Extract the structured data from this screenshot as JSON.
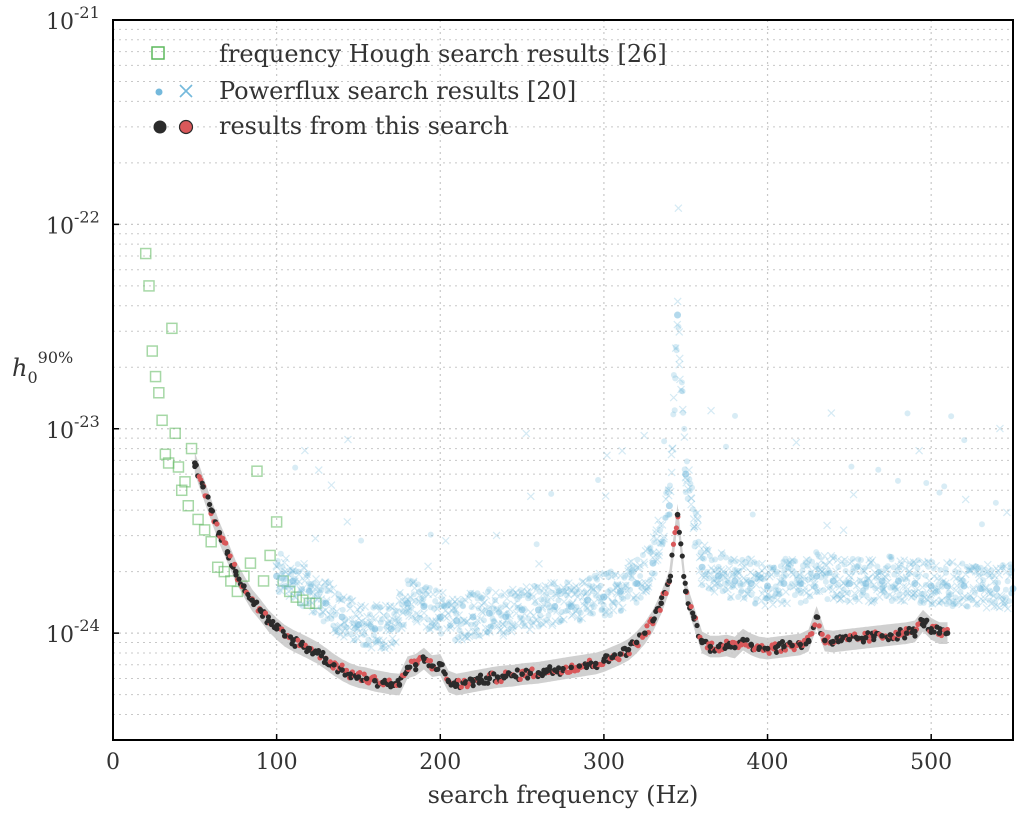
{
  "chart_data": {
    "type": "scatter",
    "xlabel": "search frequency (Hz)",
    "ylabel": "h0^90%",
    "ylabel_parts": {
      "base": "h",
      "sub": "0",
      "sup": "90%"
    },
    "xlim": [
      0,
      550
    ],
    "ylim": [
      3e-25,
      1e-21
    ],
    "y_scale": "log",
    "grid": true,
    "legend_position": "top-left",
    "x_tick_labels": [
      "0",
      "100",
      "200",
      "300",
      "400",
      "500"
    ],
    "y_tick_labels": [
      {
        "base": "10",
        "exp": "-21"
      },
      {
        "base": "10",
        "exp": "-22"
      },
      {
        "base": "10",
        "exp": "-23"
      },
      {
        "base": "10",
        "exp": "-24"
      }
    ],
    "colors": {
      "hough": "#5cb85c",
      "powerflux": "#74b9dc",
      "this_search_dark": "#2b2b2b",
      "this_search_red": "#d9585a",
      "band": "#c8c8c8",
      "grid": "#c8c8c8"
    },
    "series": [
      {
        "name": "frequency Hough search results [26]",
        "marker": "open-square",
        "x": [
          20,
          22,
          24,
          26,
          28,
          30,
          32,
          34,
          36,
          38,
          40,
          42,
          44,
          46,
          48,
          52,
          56,
          60,
          64,
          68,
          72,
          76,
          80,
          84,
          88,
          92,
          96,
          100,
          104,
          108,
          112,
          116,
          120,
          124
        ],
        "y": [
          7.2e-23,
          5e-23,
          2.4e-23,
          1.8e-23,
          1.5e-23,
          1.1e-23,
          7.5e-24,
          6.8e-24,
          3.1e-23,
          9.5e-24,
          6.5e-24,
          5e-24,
          5.5e-24,
          4.2e-24,
          8e-24,
          3.6e-24,
          3.2e-24,
          2.8e-24,
          2.1e-24,
          2e-24,
          1.8e-24,
          1.6e-24,
          1.9e-24,
          2.2e-24,
          6.2e-24,
          1.8e-24,
          2.4e-24,
          3.5e-24,
          1.8e-24,
          1.6e-24,
          1.5e-24,
          1.45e-24,
          1.4e-24,
          1.4e-24
        ]
      },
      {
        "name": "Powerflux search results [20]",
        "marker": "dot-and-cross",
        "x": [
          100,
          110,
          120,
          130,
          140,
          150,
          160,
          170,
          180,
          190,
          200,
          210,
          220,
          230,
          240,
          250,
          260,
          270,
          280,
          290,
          300,
          310,
          320,
          330,
          340,
          345,
          350,
          360,
          370,
          380,
          390,
          400,
          410,
          420,
          430,
          440,
          450,
          460,
          470,
          480,
          490,
          500,
          510,
          520,
          530,
          540,
          550
        ],
        "y": [
          1.9e-24,
          1.8e-24,
          1.6e-24,
          1.4e-24,
          1.2e-24,
          1.1e-24,
          1.05e-24,
          1.05e-24,
          1.4e-24,
          1.35e-24,
          1.2e-24,
          1.15e-24,
          1.2e-24,
          1.25e-24,
          1.2e-24,
          1.3e-24,
          1.3e-24,
          1.35e-24,
          1.35e-24,
          1.45e-24,
          1.5e-24,
          1.6e-24,
          1.75e-24,
          2.2e-24,
          4.2e-24,
          3.6e-23,
          6e-24,
          2.1e-24,
          1.9e-24,
          1.8e-24,
          1.75e-24,
          1.7e-24,
          1.75e-24,
          1.75e-24,
          1.9e-24,
          1.8e-24,
          1.75e-24,
          1.75e-24,
          1.8e-24,
          1.8e-24,
          1.75e-24,
          1.7e-24,
          1.7e-24,
          1.7e-24,
          1.65e-24,
          1.65e-24,
          1.65e-24
        ]
      },
      {
        "name": "results from this search",
        "marker": "filled-circle",
        "x": [
          50,
          55,
          60,
          65,
          70,
          75,
          80,
          85,
          90,
          95,
          100,
          105,
          110,
          115,
          120,
          125,
          130,
          135,
          140,
          145,
          150,
          155,
          160,
          165,
          170,
          175,
          180,
          185,
          190,
          195,
          200,
          205,
          210,
          215,
          220,
          225,
          230,
          235,
          240,
          245,
          250,
          255,
          260,
          265,
          270,
          275,
          280,
          285,
          290,
          295,
          300,
          305,
          310,
          315,
          320,
          325,
          330,
          335,
          340,
          345,
          350,
          355,
          360,
          365,
          370,
          375,
          380,
          385,
          390,
          395,
          400,
          405,
          410,
          415,
          420,
          425,
          430,
          435,
          440,
          445,
          450,
          455,
          460,
          465,
          470,
          475,
          480,
          485,
          490,
          495,
          500,
          505,
          510
        ],
        "y": [
          6.8e-24,
          5.2e-24,
          4e-24,
          3.1e-24,
          2.5e-24,
          2e-24,
          1.7e-24,
          1.45e-24,
          1.3e-24,
          1.15e-24,
          1.05e-24,
          9.7e-25,
          9.2e-25,
          8.8e-25,
          8.4e-25,
          8e-25,
          7.5e-25,
          7e-25,
          6.6e-25,
          6.3e-25,
          6.1e-25,
          6e-25,
          5.85e-25,
          5.75e-25,
          5.65e-25,
          5.6e-25,
          6.8e-25,
          7e-25,
          7.5e-25,
          6.9e-25,
          7e-25,
          5.8e-25,
          5.6e-25,
          5.7e-25,
          5.8e-25,
          5.9e-25,
          6e-25,
          6.1e-25,
          6.15e-25,
          6.2e-25,
          6.3e-25,
          6.35e-25,
          6.4e-25,
          6.5e-25,
          6.6e-25,
          6.7e-25,
          6.8e-25,
          6.9e-25,
          7e-25,
          7.1e-25,
          7.3e-25,
          7.6e-25,
          7.9e-25,
          8.3e-25,
          9e-25,
          1e-24,
          1.15e-24,
          1.4e-24,
          1.8e-24,
          3.8e-24,
          1.6e-24,
          1.2e-24,
          9e-25,
          8.6e-25,
          8.6e-25,
          8.7e-25,
          8.5e-25,
          9.3e-25,
          8.8e-25,
          8.5e-25,
          8.4e-25,
          8.5e-25,
          8.6e-25,
          8.7e-25,
          8.8e-25,
          9.2e-25,
          1.2e-24,
          9.2e-25,
          9.1e-25,
          9.2e-25,
          9.3e-25,
          9.4e-25,
          9.5e-25,
          9.6e-25,
          9.7e-25,
          9.8e-25,
          9.9e-25,
          1e-24,
          1.02e-24,
          1.15e-24,
          1.05e-24,
          1e-24,
          1e-24
        ]
      }
    ]
  }
}
